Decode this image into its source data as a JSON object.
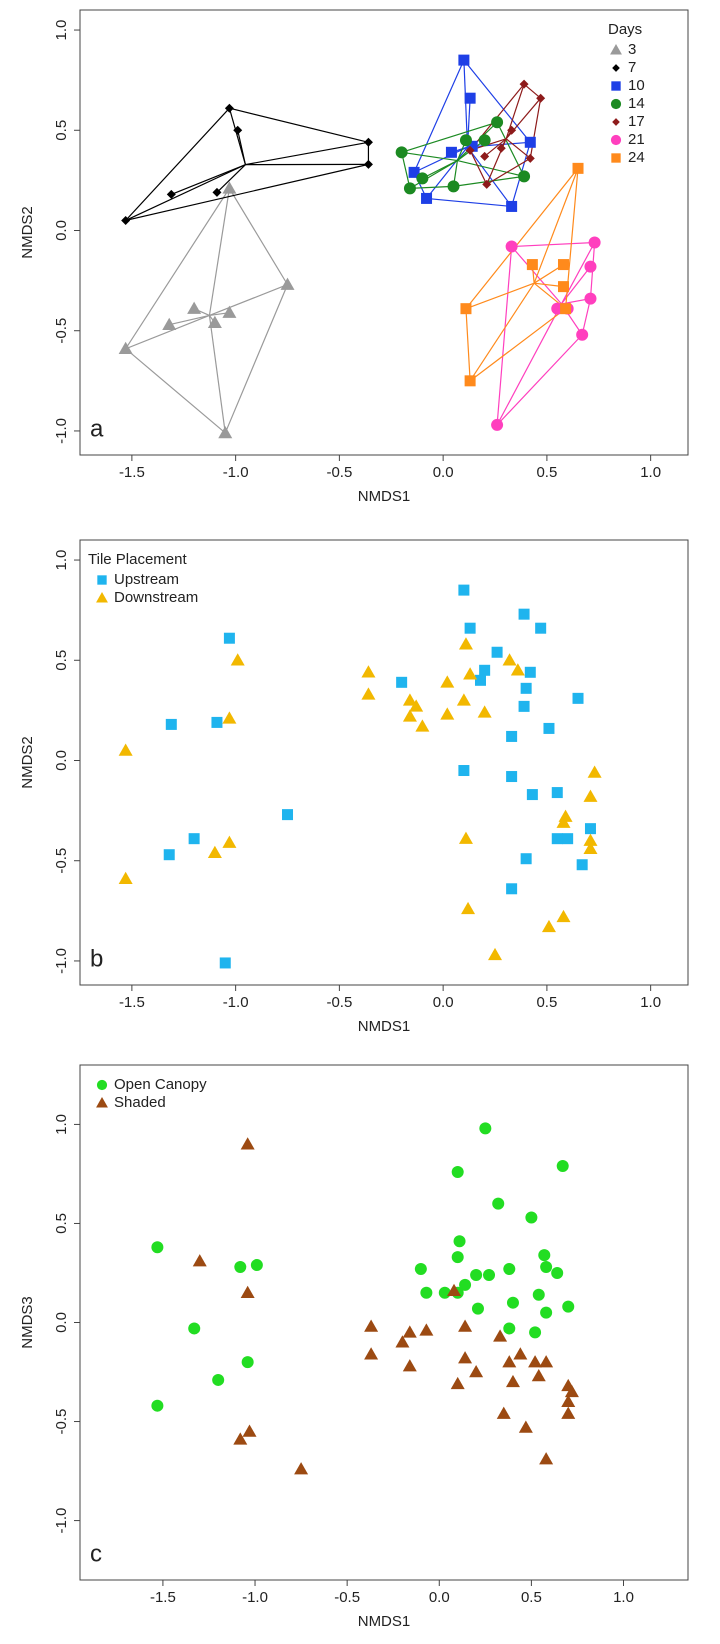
{
  "chart_data": [
    {
      "type": "scatter",
      "panel_label": "a",
      "xlabel": "NMDS1",
      "ylabel": "NMDS2",
      "xlim": [
        -1.75,
        1.18
      ],
      "ylim": [
        -1.12,
        1.1
      ],
      "xticks": [
        -1.5,
        {
          "value": -1,
          "label": "-1.0"
        },
        -0.5,
        {
          "value": 0,
          "label": "0.0"
        },
        0.5,
        {
          "value": 1,
          "label": "1.0"
        }
      ],
      "yticks": [
        {
          "value": -1,
          "label": "-1.0"
        },
        -0.5,
        {
          "value": 0,
          "label": "0.0"
        },
        0.5,
        {
          "value": 1,
          "label": "1.0"
        }
      ],
      "hulls": true,
      "legend": "upper right",
      "legend_title": "Days",
      "series": [
        {
          "name": "3",
          "color": "#9a9a9a",
          "marker": "triangle",
          "x": [
            -1.53,
            -1.32,
            -1.2,
            -1.1,
            -1.03,
            -1.03,
            -0.75,
            -1.05
          ],
          "y": [
            -0.59,
            -0.47,
            -0.39,
            -0.46,
            -0.41,
            0.21,
            -0.27,
            -1.01
          ]
        },
        {
          "name": "7",
          "color": "#000000",
          "marker": "diamond",
          "x": [
            -1.53,
            -1.31,
            -1.09,
            -1.03,
            -0.99,
            -0.36,
            -0.36
          ],
          "y": [
            0.05,
            0.18,
            0.19,
            0.61,
            0.5,
            0.44,
            0.33
          ]
        },
        {
          "name": "10",
          "color": "#1e3fe6",
          "marker": "square",
          "x": [
            0.1,
            0.13,
            -0.14,
            -0.08,
            0.04,
            0.14,
            0.33,
            0.42
          ],
          "y": [
            0.85,
            0.66,
            0.29,
            0.16,
            0.39,
            0.42,
            0.12,
            0.44
          ]
        },
        {
          "name": "14",
          "color": "#1c8a22",
          "marker": "circle",
          "x": [
            -0.2,
            -0.16,
            -0.1,
            0.05,
            0.11,
            0.2,
            0.26,
            0.39
          ],
          "y": [
            0.39,
            0.21,
            0.26,
            0.22,
            0.45,
            0.45,
            0.54,
            0.27
          ]
        },
        {
          "name": "17",
          "color": "#8e1b1b",
          "marker": "diamond",
          "x": [
            0.39,
            0.47,
            0.13,
            0.2,
            0.28,
            0.33,
            0.42,
            0.21
          ],
          "y": [
            0.73,
            0.66,
            0.4,
            0.37,
            0.41,
            0.5,
            0.36,
            0.23
          ]
        },
        {
          "name": "21",
          "color": "#ff3fbe",
          "marker": "circle",
          "x": [
            0.33,
            0.73,
            0.71,
            0.71,
            0.55,
            0.6,
            0.67,
            0.26
          ],
          "y": [
            -0.08,
            -0.06,
            -0.18,
            -0.34,
            -0.39,
            -0.39,
            -0.52,
            -0.97
          ]
        },
        {
          "name": "24",
          "color": "#ff8a1c",
          "marker": "square",
          "x": [
            0.65,
            0.43,
            0.58,
            0.58,
            0.59,
            0.11,
            0.13
          ],
          "y": [
            0.31,
            -0.17,
            -0.17,
            -0.28,
            -0.39,
            -0.39,
            -0.75
          ]
        }
      ]
    },
    {
      "type": "scatter",
      "panel_label": "b",
      "xlabel": "NMDS1",
      "ylabel": "NMDS2",
      "xlim": [
        -1.75,
        1.18
      ],
      "ylim": [
        -1.12,
        1.1
      ],
      "xticks": [
        -1.5,
        {
          "value": -1,
          "label": "-1.0"
        },
        -0.5,
        {
          "value": 0,
          "label": "0.0"
        },
        0.5,
        {
          "value": 1,
          "label": "1.0"
        }
      ],
      "yticks": [
        {
          "value": -1,
          "label": "-1.0"
        },
        -0.5,
        {
          "value": 0,
          "label": "0.0"
        },
        0.5,
        {
          "value": 1,
          "label": "1.0"
        }
      ],
      "hulls": false,
      "legend": "upper left",
      "legend_title": "Tile Placement",
      "series": [
        {
          "name": "Upstream",
          "color": "#1fb4ee",
          "marker": "square",
          "x": [
            -1.03,
            -1.31,
            -1.09,
            -0.75,
            -1.2,
            -1.32,
            -1.05,
            0.1,
            0.13,
            0.26,
            0.39,
            0.47,
            0.2,
            0.42,
            0.18,
            0.4,
            0.39,
            0.65,
            0.51,
            0.33,
            -0.2,
            0.1,
            0.33,
            0.43,
            0.55,
            0.55,
            0.6,
            0.71,
            0.67,
            0.4,
            0.33
          ],
          "y": [
            0.61,
            0.18,
            0.19,
            -0.27,
            -0.39,
            -0.47,
            -1.01,
            0.85,
            0.66,
            0.54,
            0.73,
            0.66,
            0.45,
            0.44,
            0.4,
            0.36,
            0.27,
            0.31,
            0.16,
            0.12,
            0.39,
            -0.05,
            -0.08,
            -0.17,
            -0.16,
            -0.39,
            -0.39,
            -0.34,
            -0.52,
            -0.49,
            -0.64
          ]
        },
        {
          "name": "Downstream",
          "color": "#f2b800",
          "marker": "triangle",
          "x": [
            -1.53,
            -1.53,
            -1.03,
            -0.99,
            -1.1,
            -1.03,
            -0.36,
            -0.36,
            -0.16,
            -0.13,
            -0.16,
            -0.1,
            0.02,
            0.02,
            0.1,
            0.11,
            0.13,
            0.2,
            0.32,
            0.36,
            0.11,
            0.12,
            0.25,
            0.51,
            0.58,
            0.58,
            0.59,
            0.71,
            0.73,
            0.71,
            0.71
          ],
          "y": [
            0.05,
            -0.59,
            0.21,
            0.5,
            -0.46,
            -0.41,
            0.44,
            0.33,
            0.3,
            0.27,
            0.22,
            0.17,
            0.39,
            0.23,
            0.3,
            0.58,
            0.43,
            0.24,
            0.5,
            0.45,
            -0.39,
            -0.74,
            -0.97,
            -0.83,
            -0.78,
            -0.31,
            -0.28,
            -0.18,
            -0.06,
            -0.4,
            -0.44
          ]
        }
      ]
    },
    {
      "type": "scatter",
      "panel_label": "c",
      "xlabel": "NMDS1",
      "ylabel": "NMDS3",
      "xlim": [
        -1.95,
        1.35
      ],
      "ylim": [
        -1.3,
        1.3
      ],
      "xticks": [
        -1.5,
        {
          "value": -1,
          "label": "-1.0"
        },
        -0.5,
        {
          "value": 0,
          "label": "0.0"
        },
        0.5,
        {
          "value": 1,
          "label": "1.0"
        }
      ],
      "yticks": [
        {
          "value": -1,
          "label": "-1.0"
        },
        -0.5,
        {
          "value": 0,
          "label": "0.0"
        },
        0.5,
        {
          "value": 1,
          "label": "1.0"
        }
      ],
      "hulls": false,
      "legend": "upper left",
      "series": [
        {
          "name": "Open Canopy",
          "color": "#22dd22",
          "marker": "circle",
          "x": [
            -1.53,
            -1.08,
            -0.99,
            -1.33,
            -1.04,
            -1.2,
            -1.53,
            0.25,
            0.1,
            0.67,
            0.32,
            0.5,
            0.11,
            0.1,
            0.57,
            0.58,
            0.64,
            -0.1,
            0.38,
            0.2,
            0.27,
            0.14,
            0.1,
            -0.07,
            0.03,
            0.54,
            0.4,
            0.7,
            0.21,
            0.58,
            0.38,
            0.52
          ],
          "y": [
            0.38,
            0.28,
            0.29,
            -0.03,
            -0.2,
            -0.29,
            -0.42,
            0.98,
            0.76,
            0.79,
            0.6,
            0.53,
            0.41,
            0.33,
            0.34,
            0.28,
            0.25,
            0.27,
            0.27,
            0.24,
            0.24,
            0.19,
            0.15,
            0.15,
            0.15,
            0.14,
            0.1,
            0.08,
            0.07,
            0.05,
            -0.03,
            -0.05
          ]
        },
        {
          "name": "Shaded",
          "color": "#9c4a12",
          "marker": "triangle",
          "x": [
            -1.04,
            -1.3,
            -1.04,
            -1.08,
            -1.03,
            -0.75,
            -0.37,
            -0.37,
            -0.16,
            -0.2,
            -0.16,
            -0.07,
            0.08,
            0.14,
            0.14,
            0.1,
            0.2,
            0.33,
            0.38,
            0.44,
            0.52,
            0.58,
            0.4,
            0.35,
            0.54,
            0.7,
            0.72,
            0.7,
            0.7,
            0.47,
            0.58
          ],
          "y": [
            0.9,
            0.31,
            0.15,
            -0.59,
            -0.55,
            -0.74,
            -0.02,
            -0.16,
            -0.05,
            -0.1,
            -0.22,
            -0.04,
            0.16,
            -0.02,
            -0.18,
            -0.31,
            -0.25,
            -0.07,
            -0.2,
            -0.16,
            -0.2,
            -0.2,
            -0.3,
            -0.46,
            -0.27,
            -0.32,
            -0.35,
            -0.4,
            -0.46,
            -0.53,
            -0.69
          ]
        }
      ]
    }
  ]
}
